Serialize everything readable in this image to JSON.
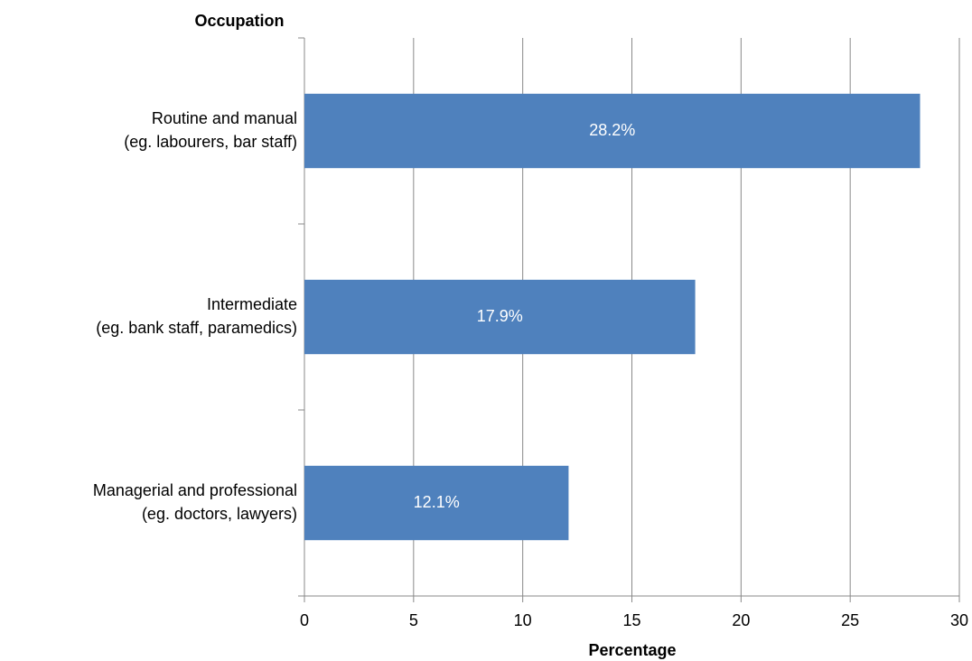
{
  "chart_data": {
    "type": "bar",
    "orientation": "horizontal",
    "x_label": "Percentage",
    "y_label": "Occupation",
    "categories": [
      [
        "Routine and manual",
        "(eg. labourers, bar staff)"
      ],
      [
        "Intermediate",
        "(eg. bank staff, paramedics)"
      ],
      [
        "Managerial and professional",
        "(eg. doctors, lawyers)"
      ]
    ],
    "values": [
      28.2,
      17.9,
      12.1
    ],
    "value_labels": [
      "28.2%",
      "17.9%",
      "12.1%"
    ],
    "color": "#4f81bd",
    "xlim": [
      0,
      30
    ],
    "xticks": [
      0,
      5,
      10,
      15,
      20,
      25,
      30
    ],
    "grid": true
  }
}
